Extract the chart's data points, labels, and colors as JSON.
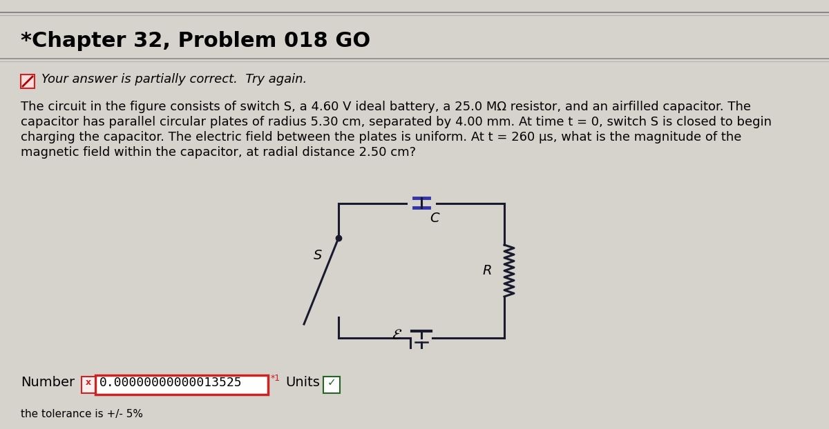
{
  "title": "*Chapter 32, Problem 018 GO",
  "feedback_text": "Your answer is partially correct.  Try again.",
  "problem_text_lines": [
    "The circuit in the figure consists of switch S, a 4.60 V ideal battery, a 25.0 MΩ resistor, and an airfilled capacitor. The",
    "capacitor has parallel circular plates of radius 5.30 cm, separated by 4.00 mm. At time t = 0, switch S is closed to begin",
    "charging the capacitor. The electric field between the plates is uniform. At t = 260 μs, what is the magnitude of the",
    "magnetic field within the capacitor, at radial distance 2.50 cm?"
  ],
  "number_label": "Number",
  "number_value": "0.00000000000013525",
  "units_label": "Units",
  "tolerance_text": "the tolerance is +/- 5%",
  "bg_color": "#d6d2cc",
  "title_fontsize": 22,
  "feedback_fontsize": 13,
  "problem_fontsize": 13,
  "number_fontsize": 14
}
